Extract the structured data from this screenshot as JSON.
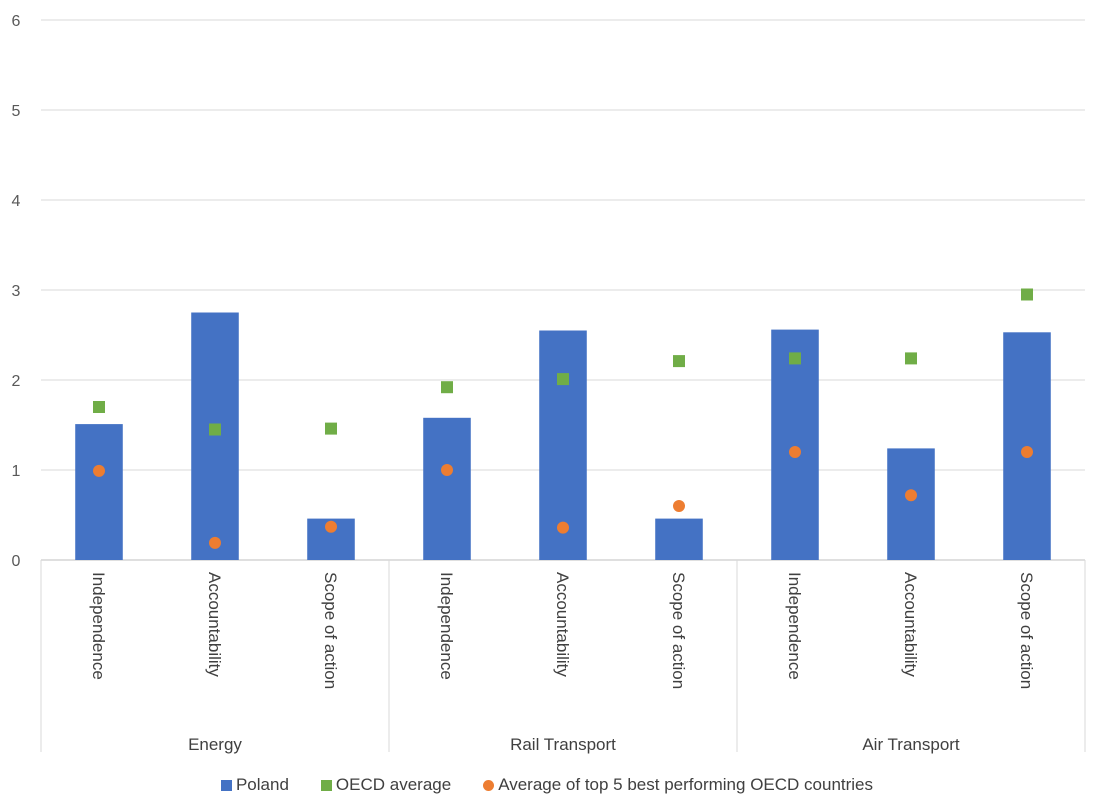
{
  "chart_data": {
    "type": "bar",
    "title": "",
    "xlabel": "",
    "ylabel": "",
    "ylim": [
      0,
      6
    ],
    "yticks": [
      0,
      1,
      2,
      3,
      4,
      5,
      6
    ],
    "grid": true,
    "legend_position": "bottom",
    "groups": [
      {
        "name": "Energy",
        "categories": [
          "Independence",
          "Accountability",
          "Scope of action"
        ]
      },
      {
        "name": "Rail Transport",
        "categories": [
          "Independence",
          "Accountability",
          "Scope of action"
        ]
      },
      {
        "name": "Air Transport",
        "categories": [
          "Independence",
          "Accountability",
          "Scope of action"
        ]
      }
    ],
    "series": [
      {
        "name": "Poland",
        "kind": "bar",
        "color": "#4472C4",
        "values": [
          1.51,
          2.75,
          0.46,
          1.58,
          2.55,
          0.46,
          2.56,
          1.24,
          2.53
        ]
      },
      {
        "name": "OECD average",
        "kind": "marker-square",
        "color": "#70AD47",
        "values": [
          1.7,
          1.45,
          1.46,
          1.92,
          2.01,
          2.21,
          2.24,
          2.24,
          2.95
        ]
      },
      {
        "name": "Average of top 5 best performing OECD countries",
        "kind": "marker-circle",
        "color": "#ED7D31",
        "values": [
          0.99,
          0.19,
          0.37,
          1.0,
          0.36,
          0.6,
          1.2,
          0.72,
          1.2
        ]
      }
    ]
  }
}
